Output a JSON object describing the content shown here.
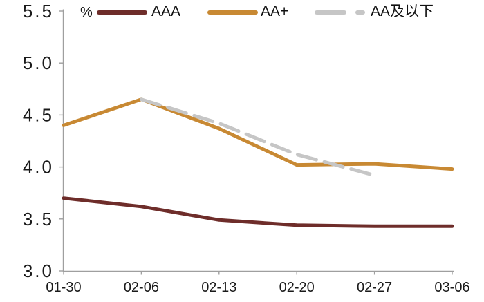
{
  "chart_data": {
    "type": "line",
    "title": "",
    "unit_label": "%",
    "x": [
      "01-30",
      "02-06",
      "02-13",
      "02-20",
      "02-27",
      "03-06"
    ],
    "y_ticks": [
      "5.5",
      "5.0",
      "4.5",
      "4.0",
      "3.5",
      "3.0"
    ],
    "ylim": [
      3.0,
      5.5
    ],
    "grid": false,
    "legend_position": "top",
    "axis_color": "#9f9f9f",
    "text_color": "#1a1a1a",
    "series": [
      {
        "name": "AAA",
        "color": "#6E2D2A",
        "style": "solid",
        "values": [
          3.7,
          3.62,
          3.49,
          3.44,
          3.43,
          3.43
        ]
      },
      {
        "name": "AA+",
        "color": "#C88933",
        "style": "solid",
        "values": [
          4.4,
          4.65,
          4.37,
          4.02,
          4.03,
          3.98
        ]
      },
      {
        "name": "AA及以下",
        "color": "#C6C6C6",
        "style": "dashed",
        "values": [
          null,
          4.65,
          4.42,
          4.12,
          3.92,
          null
        ]
      }
    ]
  }
}
